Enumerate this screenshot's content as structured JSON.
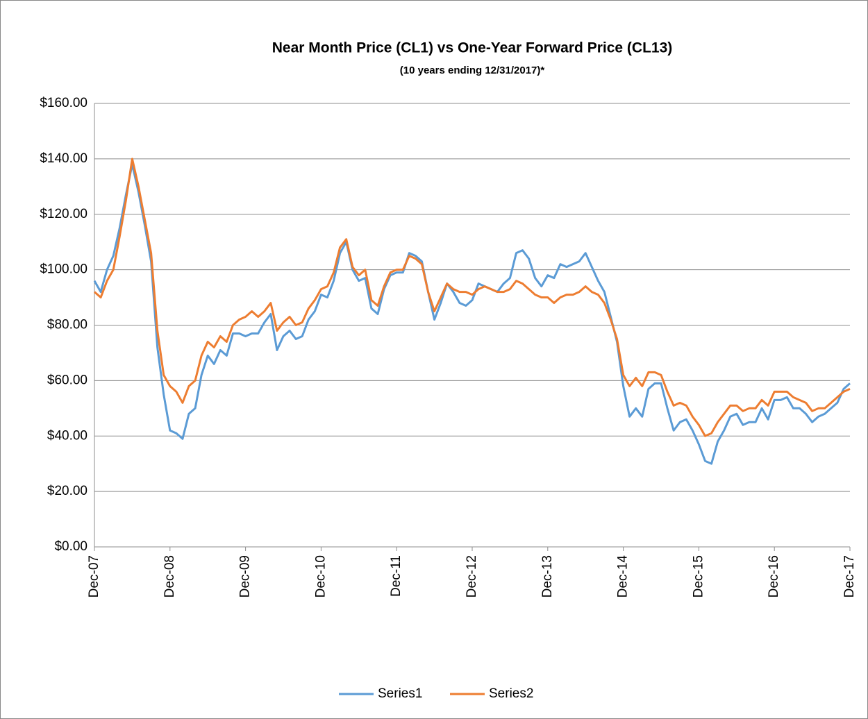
{
  "chart_data": {
    "type": "line",
    "title": "Near Month Price (CL1) vs One-Year Forward Price (CL13)",
    "subtitle": "(10 years ending 12/31/2017)*",
    "x": [
      "2007-12",
      "2008-01",
      "2008-02",
      "2008-03",
      "2008-04",
      "2008-05",
      "2008-06",
      "2008-07",
      "2008-08",
      "2008-09",
      "2008-10",
      "2008-11",
      "2008-12",
      "2009-01",
      "2009-02",
      "2009-03",
      "2009-04",
      "2009-05",
      "2009-06",
      "2009-07",
      "2009-08",
      "2009-09",
      "2009-10",
      "2009-11",
      "2009-12",
      "2010-01",
      "2010-02",
      "2010-03",
      "2010-04",
      "2010-05",
      "2010-06",
      "2010-07",
      "2010-08",
      "2010-09",
      "2010-10",
      "2010-11",
      "2010-12",
      "2011-01",
      "2011-02",
      "2011-03",
      "2011-04",
      "2011-05",
      "2011-06",
      "2011-07",
      "2011-08",
      "2011-09",
      "2011-10",
      "2011-11",
      "2011-12",
      "2012-01",
      "2012-02",
      "2012-03",
      "2012-04",
      "2012-05",
      "2012-06",
      "2012-07",
      "2012-08",
      "2012-09",
      "2012-10",
      "2012-11",
      "2012-12",
      "2013-01",
      "2013-02",
      "2013-03",
      "2013-04",
      "2013-05",
      "2013-06",
      "2013-07",
      "2013-08",
      "2013-09",
      "2013-10",
      "2013-11",
      "2013-12",
      "2014-01",
      "2014-02",
      "2014-03",
      "2014-04",
      "2014-05",
      "2014-06",
      "2014-07",
      "2014-08",
      "2014-09",
      "2014-10",
      "2014-11",
      "2014-12",
      "2015-01",
      "2015-02",
      "2015-03",
      "2015-04",
      "2015-05",
      "2015-06",
      "2015-07",
      "2015-08",
      "2015-09",
      "2015-10",
      "2015-11",
      "2015-12",
      "2016-01",
      "2016-02",
      "2016-03",
      "2016-04",
      "2016-05",
      "2016-06",
      "2016-07",
      "2016-08",
      "2016-09",
      "2016-10",
      "2016-11",
      "2016-12",
      "2017-01",
      "2017-02",
      "2017-03",
      "2017-04",
      "2017-05",
      "2017-06",
      "2017-07",
      "2017-08",
      "2017-09",
      "2017-10",
      "2017-11",
      "2017-12"
    ],
    "series": [
      {
        "name": "Series1",
        "color": "#5b9bd5",
        "values": [
          96,
          92,
          100,
          105,
          115,
          127,
          138,
          128,
          116,
          103,
          72,
          55,
          42,
          41,
          39,
          48,
          50,
          62,
          69,
          66,
          71,
          69,
          77,
          77,
          76,
          77,
          77,
          81,
          84,
          71,
          76,
          78,
          75,
          76,
          82,
          85,
          91,
          90,
          96,
          106,
          110,
          100,
          96,
          97,
          86,
          84,
          93,
          98,
          99,
          99,
          106,
          105,
          103,
          92,
          82,
          88,
          95,
          92,
          88,
          87,
          89,
          95,
          94,
          93,
          92,
          95,
          97,
          106,
          107,
          104,
          97,
          94,
          98,
          97,
          102,
          101,
          102,
          103,
          106,
          101,
          96,
          92,
          83,
          74,
          58,
          47,
          50,
          47,
          57,
          59,
          59,
          50,
          42,
          45,
          46,
          42,
          37,
          31,
          30,
          38,
          42,
          47,
          48,
          44,
          45,
          45,
          50,
          46,
          53,
          53,
          54,
          50,
          50,
          48,
          45,
          47,
          48,
          50,
          52,
          57,
          59
        ]
      },
      {
        "name": "Series2",
        "color": "#ed7d31",
        "values": [
          92,
          90,
          96,
          100,
          112,
          125,
          140,
          130,
          118,
          106,
          78,
          62,
          58,
          56,
          52,
          58,
          60,
          69,
          74,
          72,
          76,
          74,
          80,
          82,
          83,
          85,
          83,
          85,
          88,
          78,
          81,
          83,
          80,
          81,
          86,
          89,
          93,
          94,
          99,
          108,
          111,
          101,
          98,
          100,
          89,
          87,
          94,
          99,
          100,
          100,
          105,
          104,
          102,
          92,
          85,
          90,
          95,
          93,
          92,
          92,
          91,
          93,
          94,
          93,
          92,
          92,
          93,
          96,
          95,
          93,
          91,
          90,
          90,
          88,
          90,
          91,
          91,
          92,
          94,
          92,
          91,
          88,
          82,
          75,
          62,
          58,
          61,
          58,
          63,
          63,
          62,
          56,
          51,
          52,
          51,
          47,
          44,
          40,
          41,
          45,
          48,
          51,
          51,
          49,
          50,
          50,
          53,
          51,
          56,
          56,
          56,
          54,
          53,
          52,
          49,
          50,
          50,
          52,
          54,
          56,
          57
        ]
      }
    ],
    "xlim": [
      "2007-12",
      "2017-12"
    ],
    "xticks": [
      {
        "value": "2007-12",
        "label": "Dec-07"
      },
      {
        "value": "2008-12",
        "label": "Dec-08"
      },
      {
        "value": "2009-12",
        "label": "Dec-09"
      },
      {
        "value": "2010-12",
        "label": "Dec-10"
      },
      {
        "value": "2011-12",
        "label": "Dec-11"
      },
      {
        "value": "2012-12",
        "label": "Dec-12"
      },
      {
        "value": "2013-12",
        "label": "Dec-13"
      },
      {
        "value": "2014-12",
        "label": "Dec-14"
      },
      {
        "value": "2015-12",
        "label": "Dec-15"
      },
      {
        "value": "2016-12",
        "label": "Dec-16"
      },
      {
        "value": "2017-12",
        "label": "Dec-17"
      }
    ],
    "ylim": [
      0,
      160
    ],
    "yticks": [
      {
        "value": 0,
        "label": "$0.00"
      },
      {
        "value": 20,
        "label": "$20.00"
      },
      {
        "value": 40,
        "label": "$40.00"
      },
      {
        "value": 60,
        "label": "$60.00"
      },
      {
        "value": 80,
        "label": "$80.00"
      },
      {
        "value": 100,
        "label": "$100.00"
      },
      {
        "value": 120,
        "label": "$120.00"
      },
      {
        "value": 140,
        "label": "$140.00"
      },
      {
        "value": 160,
        "label": "$160.00"
      }
    ],
    "grid": true,
    "legend": "bottom"
  }
}
